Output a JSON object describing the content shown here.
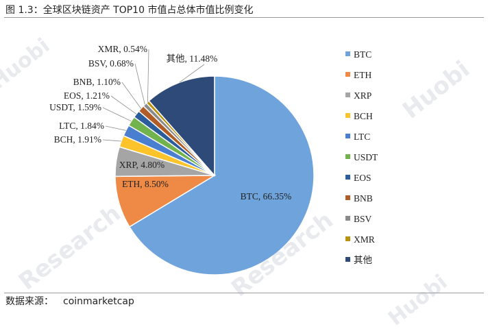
{
  "figure": {
    "title": "图 1.3：全球区块链资产 TOP10 市值占总体市值比例变化",
    "source_label": "数据来源：",
    "source_value": "coinmarketcap"
  },
  "watermarks": [
    "Huobi",
    "Research"
  ],
  "chart_data": {
    "type": "pie",
    "title": "",
    "legend_position": "right",
    "slices": [
      {
        "name": "BTC",
        "value": 66.35,
        "label": "BTC, 66.35%",
        "color": "#6fa3dc"
      },
      {
        "name": "ETH",
        "value": 8.5,
        "label": "ETH, 8.50%",
        "color": "#ef8a46"
      },
      {
        "name": "XRP",
        "value": 4.8,
        "label": "XRP, 4.80%",
        "color": "#a5a5a5"
      },
      {
        "name": "BCH",
        "value": 1.91,
        "label": "BCH, 1.91%",
        "color": "#fdc32a"
      },
      {
        "name": "LTC",
        "value": 1.84,
        "label": "LTC, 1.84%",
        "color": "#4a7fd0"
      },
      {
        "name": "USDT",
        "value": 1.59,
        "label": "USDT, 1.59%",
        "color": "#72b34e"
      },
      {
        "name": "EOS",
        "value": 1.21,
        "label": "EOS, 1.21%",
        "color": "#2b5c9c"
      },
      {
        "name": "BNB",
        "value": 1.1,
        "label": "BNB, 1.10%",
        "color": "#b15d28"
      },
      {
        "name": "BSV",
        "value": 0.68,
        "label": "BSV, 0.68%",
        "color": "#8a8a8a"
      },
      {
        "name": "XMR",
        "value": 0.54,
        "label": "XMR, 0.54%",
        "color": "#b8920f"
      },
      {
        "name": "其他",
        "value": 11.48,
        "label": "其他, 11.48%",
        "color": "#2d4a78"
      }
    ]
  }
}
